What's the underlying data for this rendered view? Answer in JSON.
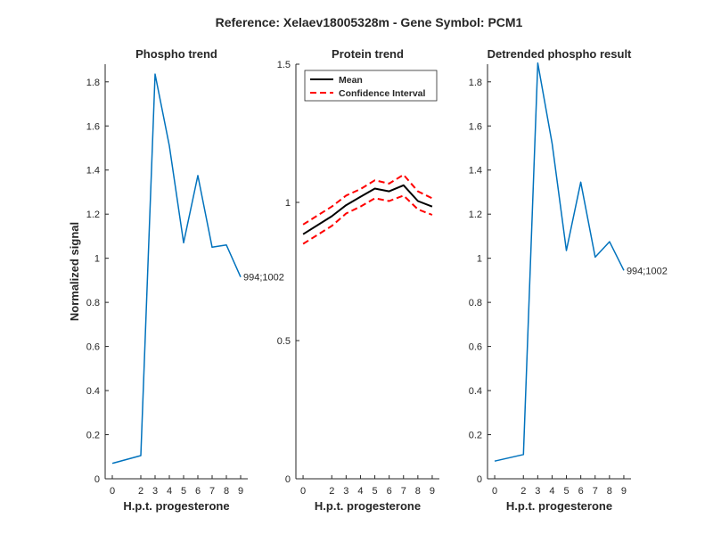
{
  "figure_title": "Reference:  Xelaev18005328m - Gene Symbol:  PCM1",
  "chart_data": [
    {
      "type": "line",
      "title": "Phospho trend",
      "xlabel": "H.p.t. progesterone",
      "ylabel": "Normalized signal",
      "x": [
        0,
        2,
        3,
        4,
        5,
        6,
        7,
        8,
        9
      ],
      "x_tick_labels": [
        "0",
        "2",
        "3",
        "4",
        "5",
        "6",
        "7",
        "8",
        "9"
      ],
      "xlim": [
        -0.5,
        9.5
      ],
      "ylim": [
        0,
        1.88
      ],
      "y_ticks": [
        0,
        0.2,
        0.4,
        0.6,
        0.8,
        1,
        1.2,
        1.4,
        1.6,
        1.8
      ],
      "y_tick_labels": [
        "0",
        "0.2",
        "0.4",
        "0.6",
        "0.8",
        "1",
        "1.2",
        "1.4",
        "1.6",
        "1.8"
      ],
      "series": [
        {
          "name": "994;1002",
          "color": "#0072BD",
          "values": [
            0.07,
            0.105,
            1.835,
            1.51,
            1.07,
            1.375,
            1.05,
            1.06,
            0.915
          ]
        }
      ],
      "annotations": [
        {
          "text": "994;1002",
          "x": 9,
          "y": 0.915
        }
      ]
    },
    {
      "type": "line",
      "title": "Protein trend",
      "xlabel": "H.p.t. progesterone",
      "ylabel": "",
      "x": [
        0,
        2,
        3,
        4,
        5,
        6,
        7,
        8,
        9
      ],
      "x_tick_labels": [
        "0",
        "2",
        "3",
        "4",
        "5",
        "6",
        "7",
        "8",
        "9"
      ],
      "xlim": [
        -0.5,
        9.5
      ],
      "ylim": [
        0,
        1.5
      ],
      "y_ticks": [
        0,
        0.5,
        1,
        1.5
      ],
      "y_tick_labels": [
        "0",
        "0.5",
        "1",
        "1.5"
      ],
      "legend_position": "top-left",
      "series": [
        {
          "name": "Mean",
          "color": "#000000",
          "style": "solid",
          "values": [
            0.885,
            0.95,
            0.99,
            1.02,
            1.05,
            1.04,
            1.062,
            1.005,
            0.985
          ]
        },
        {
          "name": "Confidence Interval",
          "color": "#FF0000",
          "style": "dashed",
          "values": [
            0.92,
            0.985,
            1.025,
            1.048,
            1.08,
            1.068,
            1.1,
            1.04,
            1.015
          ]
        },
        {
          "name": "Confidence Interval (lower)",
          "color": "#FF0000",
          "style": "dashed",
          "legend": false,
          "values": [
            0.85,
            0.915,
            0.96,
            0.985,
            1.015,
            1.005,
            1.025,
            0.975,
            0.955
          ]
        }
      ]
    },
    {
      "type": "line",
      "title": "Detrended phospho result",
      "xlabel": "H.p.t. progesterone",
      "ylabel": "",
      "x": [
        0,
        2,
        3,
        4,
        5,
        6,
        7,
        8,
        9
      ],
      "x_tick_labels": [
        "0",
        "2",
        "3",
        "4",
        "5",
        "6",
        "7",
        "8",
        "9"
      ],
      "xlim": [
        -0.5,
        9.5
      ],
      "ylim": [
        0,
        1.88
      ],
      "y_ticks": [
        0,
        0.2,
        0.4,
        0.6,
        0.8,
        1,
        1.2,
        1.4,
        1.6,
        1.8
      ],
      "y_tick_labels": [
        "0",
        "0.2",
        "0.4",
        "0.6",
        "0.8",
        "1",
        "1.2",
        "1.4",
        "1.6",
        "1.8"
      ],
      "series": [
        {
          "name": "994;1002",
          "color": "#0072BD",
          "values": [
            0.08,
            0.11,
            1.885,
            1.52,
            1.035,
            1.345,
            1.005,
            1.075,
            0.945
          ]
        }
      ],
      "annotations": [
        {
          "text": "994;1002",
          "x": 9,
          "y": 0.945
        }
      ]
    }
  ]
}
